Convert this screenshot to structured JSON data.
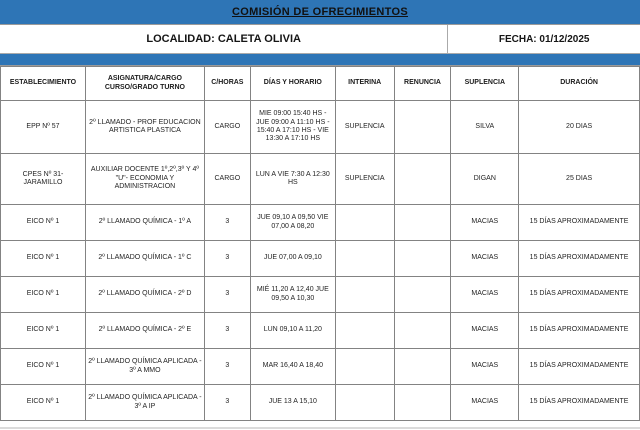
{
  "title": "COMISIÓN DE OFRECIMIENTOS",
  "header_bar": {
    "localidad": "LOCALIDAD: CALETA OLIVIA",
    "fecha": "FECHA: 01/12/2025"
  },
  "colors": {
    "band_blue": "#2E75B6",
    "border_gray": "#838383",
    "text_black": "#1c1c1c"
  },
  "table": {
    "headers": [
      "ESTABLECIMIENTO",
      "ASIGNATURA/CARGO CURSO/GRADO TURNO",
      "C/HORAS",
      "DÍAS Y HORARIO",
      "INTERINA",
      "RENUNCIA",
      "SUPLENCIA",
      "DURACIÓN"
    ],
    "col_widths_percent": [
      13.3,
      18.6,
      7.2,
      13.3,
      9.2,
      8.9,
      10.6,
      18.9
    ],
    "rows": [
      [
        "EPP Nº 57",
        "2º LLAMADO - PROF EDUCACION ARTISTICA PLASTICA",
        "CARGO",
        "MIE 09:00 15:40 HS - JUE 09:00 A 11:10 HS - 15:40 A 17:10 HS - VIE 13:30 A 17:10 HS",
        "SUPLENCIA",
        "",
        "SILVA",
        "20 DIAS"
      ],
      [
        "CPES Nº 31- JARAMILLO",
        "AUXILIAR DOCENTE 1º,2º,3º Y 4º \"U\"- ECONOMIA Y ADMINISTRACION",
        "CARGO",
        "LUN A VIE 7:30 A 12:30 HS",
        "SUPLENCIA",
        "",
        "DIGAN",
        "25 DIAS"
      ],
      [
        "EICO Nº 1",
        "2º LLAMADO QUÍMICA - 1º A",
        "3",
        "JUE 09,10 A 09,50 VIE 07,00 A 08,20",
        "",
        "",
        "MACIAS",
        "15 DÍAS APROXIMADAMENTE"
      ],
      [
        "EICO Nº 1",
        "2º LLAMADO QUÍMICA - 1º C",
        "3",
        "JUE 07,00 A 09,10",
        "",
        "",
        "MACIAS",
        "15 DÍAS APROXIMADAMENTE"
      ],
      [
        "EICO Nº 1",
        "2º LLAMADO QUÍMICA - 2º D",
        "3",
        "MIÉ 11,20 A 12,40 JUE 09,50 A 10,30",
        "",
        "",
        "MACIAS",
        "15 DÍAS APROXIMADAMENTE"
      ],
      [
        "EICO Nº 1",
        "2º LLAMADO QUÍMICA - 2º E",
        "3",
        "LUN 09,10 A 11,20",
        "",
        "",
        "MACIAS",
        "15 DÍAS APROXIMADAMENTE"
      ],
      [
        "EICO Nº 1",
        "2º LLAMADO QUÍMICA APLICADA - 3º A MMO",
        "3",
        "MAR 16,40 A 18,40",
        "",
        "",
        "MACIAS",
        "15 DÍAS APROXIMADAMENTE"
      ],
      [
        "EICO Nº 1",
        "2º LLAMADO QUÍMICA APLICADA - 3º A IP",
        "3",
        "JUE 13 A 15,10",
        "",
        "",
        "MACIAS",
        "15 DÍAS APROXIMADAMENTE"
      ]
    ]
  }
}
